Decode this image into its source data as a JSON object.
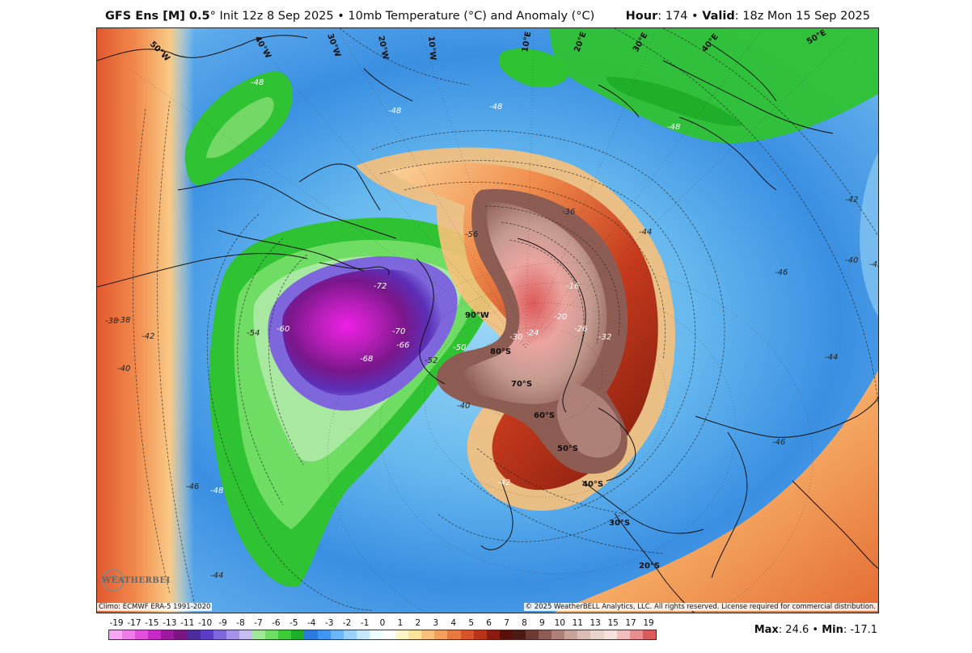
{
  "header": {
    "model_bold": "GFS Ens [M] 0.5",
    "model_rest": "° Init 12z 8 Sep 2025 • 10mb Temperature (°C) and Anomaly (°C)",
    "hour_label": "Hour",
    "hour_value": ": 174 • ",
    "valid_label": "Valid",
    "valid_value": ": 18z Mon 15 Sep 2025"
  },
  "credits": {
    "climo": "Climo: ECMWF ERA-5 1991-2020",
    "copyright": "© 2025 WeatherBELL Analytics, LLC. All rights reserved. License required for commercial distribution.",
    "logo_text": "WEATHERBELL"
  },
  "stats": {
    "max_label": "Max",
    "max_value": ": 24.6 • ",
    "min_label": "Min",
    "min_value": ": -17.1"
  },
  "colorbar": {
    "labels": [
      "-19",
      "-17",
      "-15",
      "-13",
      "-11",
      "-10",
      "-9",
      "-8",
      "-7",
      "-6",
      "-5",
      "-4",
      "-3",
      "-2",
      "-1",
      "0",
      "1",
      "2",
      "3",
      "4",
      "5",
      "6",
      "7",
      "8",
      "9",
      "10",
      "11",
      "13",
      "15",
      "17",
      "19"
    ],
    "colors": [
      "#f7a8f2",
      "#ee7be8",
      "#e14fdc",
      "#c62ac6",
      "#9d1a9e",
      "#7a1683",
      "#4b2c9c",
      "#5b3cc7",
      "#7e66dd",
      "#a493e8",
      "#c6bdf0",
      "#9fe89a",
      "#6fdc63",
      "#3fcc39",
      "#1fae29",
      "#2e7be0",
      "#3f96f0",
      "#6ab6f6",
      "#98d2f8",
      "#c6e8fb",
      "#eefcff",
      "#ffffff",
      "#fdf6c9",
      "#fbe39b",
      "#f8c07a",
      "#f39f5e",
      "#e8793e",
      "#d7532a",
      "#b83318",
      "#8e1b0f",
      "#5a0e09",
      "#4a1a14",
      "#6b3b33",
      "#8d5d54",
      "#ae8078",
      "#c9a29a",
      "#dbbdb5",
      "#e9d3cd",
      "#f3e2dd",
      "#f1bdbd",
      "#e88e8e",
      "#db5a5a"
    ]
  },
  "map": {
    "lat_labels": [
      "90°W",
      "80°S",
      "70°S",
      "60°S",
      "50°S",
      "40°S",
      "30°S",
      "20°S"
    ],
    "lon_labels": [
      "40°W",
      "30°W",
      "20°W",
      "10°W",
      "50°W",
      "10°E",
      "20°E",
      "30°E",
      "40°E",
      "50°E"
    ],
    "contour_labels": [
      "-48",
      "-48",
      "-48",
      "-48",
      "-46",
      "-44",
      "-42",
      "-40",
      "-38",
      "-36",
      "-32",
      "-30",
      "-26",
      "-24",
      "-20",
      "-16",
      "-50",
      "-52",
      "-54",
      "-56",
      "-60",
      "-66",
      "-68",
      "-70",
      "-72",
      "-38",
      "-40",
      "-42",
      "-44",
      "-46",
      "-48",
      "-42",
      "-40",
      "-44",
      "-46",
      "-42"
    ]
  }
}
